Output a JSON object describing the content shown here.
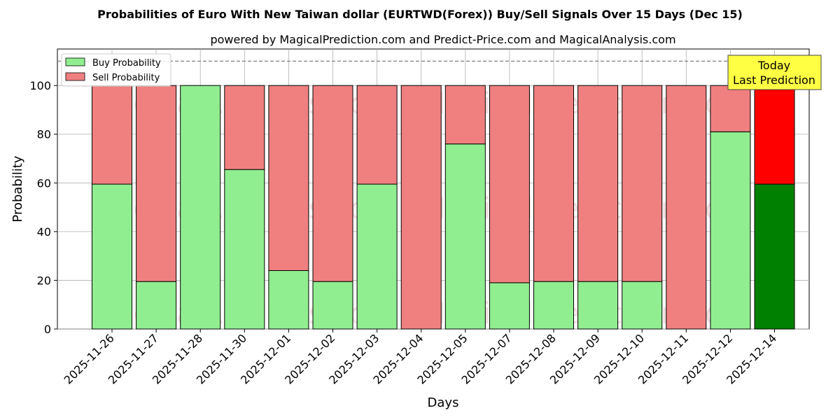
{
  "chart_data": {
    "type": "bar",
    "stacked": true,
    "title": "Probabilities of Euro With New Taiwan dollar (EURTWD(Forex)) Buy/Sell Signals Over 15 Days (Dec 15)",
    "subtitle": "powered by MagicalPrediction.com and Predict-Price.com and MagicalAnalysis.com",
    "xlabel": "Days",
    "ylabel": "Probability",
    "ylim": [
      0,
      115
    ],
    "yticks": [
      0,
      20,
      40,
      60,
      80,
      100
    ],
    "reference_line": 110,
    "grid": true,
    "legend_position": "top-left",
    "categories": [
      "2025-11-26",
      "2025-11-27",
      "2025-11-28",
      "2025-11-30",
      "2025-12-01",
      "2025-12-02",
      "2025-12-03",
      "2025-12-04",
      "2025-12-05",
      "2025-12-07",
      "2025-12-08",
      "2025-12-09",
      "2025-12-10",
      "2025-12-11",
      "2025-12-12",
      "2025-12-14"
    ],
    "series": [
      {
        "name": "Buy Probability",
        "color": "#90ee90",
        "highlight_color": "#008000",
        "values": [
          59.5,
          19.5,
          100,
          65.5,
          24,
          19.5,
          59.5,
          0,
          76,
          19,
          19.5,
          19.5,
          19.5,
          0,
          81,
          59.5
        ]
      },
      {
        "name": "Sell Probability",
        "color": "#f08080",
        "highlight_color": "#ff0000",
        "values": [
          40.5,
          80.5,
          0,
          34.5,
          76,
          80.5,
          40.5,
          100,
          24,
          81,
          80.5,
          80.5,
          80.5,
          100,
          19,
          40.5
        ]
      }
    ],
    "highlight_index": 15,
    "annotation": {
      "line1": "Today",
      "line2": "Last Prediction",
      "color": "#ffff44"
    },
    "watermarks": [
      "MagicalAnalysis.com",
      "MagicalPrediction.com"
    ]
  }
}
